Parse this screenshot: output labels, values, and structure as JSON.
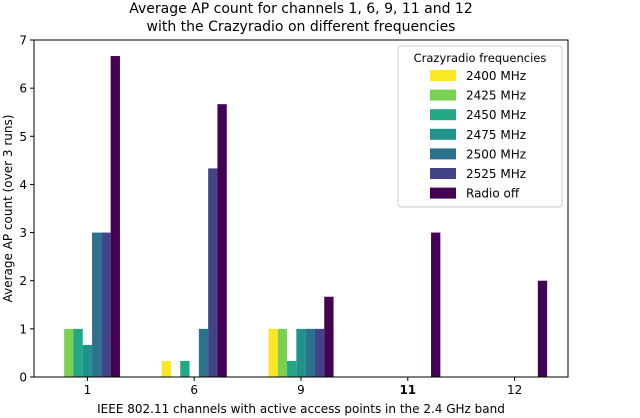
{
  "chart_data": {
    "type": "bar",
    "title": "Average AP count for channels 1, 6, 9, 11 and 12\nwith the Crazyradio on different frequencies",
    "xlabel": "IEEE 802.11 channels with active access points in the 2.4 GHz band",
    "ylabel": "Average AP count (over 3 runs)",
    "ylim": [
      0,
      7
    ],
    "yticks": [
      0,
      1,
      2,
      3,
      4,
      5,
      6,
      7
    ],
    "categories": [
      "1",
      "6",
      "9",
      "11",
      "12"
    ],
    "category_bold": [
      false,
      false,
      false,
      true,
      false
    ],
    "legend_title": "Crazyradio frequencies",
    "legend_position": "top-right",
    "grid": false,
    "series": [
      {
        "name": "2400 MHz",
        "color": "#fde725",
        "values": [
          0,
          0.333,
          1,
          0,
          0
        ]
      },
      {
        "name": "2425 MHz",
        "color": "#7ad151",
        "values": [
          1,
          0,
          1,
          0,
          0
        ]
      },
      {
        "name": "2450 MHz",
        "color": "#22a884",
        "values": [
          1,
          0.333,
          0.333,
          0,
          0
        ]
      },
      {
        "name": "2475 MHz",
        "color": "#21918c",
        "values": [
          0.667,
          0,
          1,
          0,
          0
        ]
      },
      {
        "name": "2500 MHz",
        "color": "#2c728e",
        "values": [
          3,
          1,
          1,
          0,
          0
        ]
      },
      {
        "name": "2525 MHz",
        "color": "#414487",
        "values": [
          3,
          4.333,
          1,
          0,
          0
        ]
      },
      {
        "name": "Radio off",
        "color": "#440154",
        "values": [
          6.667,
          5.667,
          1.667,
          3,
          2
        ]
      }
    ]
  }
}
